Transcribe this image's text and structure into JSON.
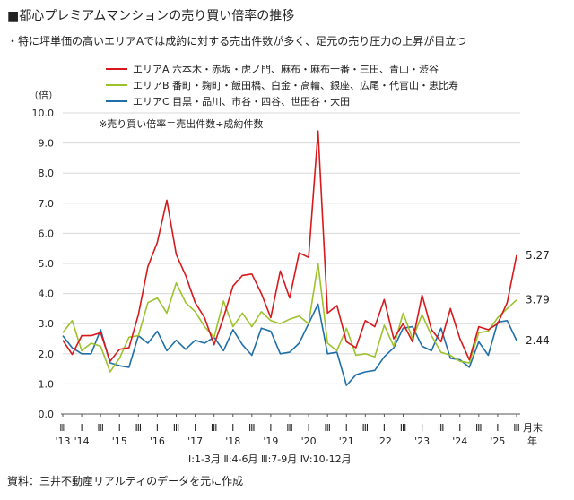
{
  "header": {
    "title": "■都心プレミアムマンションの売り買い倍率の推移",
    "subtitle": "・特に坪単価の高いエリアAでは成約に対する売出件数が多く、足元の売り圧力の上昇が目立つ"
  },
  "footer": {
    "quarter_key": "Ⅰ:1-3月 Ⅱ:4-6月 Ⅲ:7-9月 Ⅳ:10-12月",
    "source": "資料：三井不動産リアルティのデータを元に作成"
  },
  "chart_data": {
    "type": "line",
    "ylabel": "（倍）",
    "ylim": [
      0,
      10
    ],
    "yticks": [
      "0.0",
      "1.0",
      "2.0",
      "3.0",
      "4.0",
      "5.0",
      "6.0",
      "7.0",
      "8.0",
      "9.0",
      "10.0"
    ],
    "grid": true,
    "legend_position": "top-left",
    "note": "※売り買い倍率＝売出件数÷成約件数",
    "x_unit_label": [
      "月末",
      "年"
    ],
    "x_tick_labels": [
      {
        "q": "Ⅲ",
        "year": "'13"
      },
      {
        "q": "Ⅰ",
        "year": "'14"
      },
      {
        "q": "Ⅲ",
        "year": ""
      },
      {
        "q": "Ⅰ",
        "year": "'15"
      },
      {
        "q": "Ⅲ",
        "year": ""
      },
      {
        "q": "Ⅰ",
        "year": "'16"
      },
      {
        "q": "Ⅲ",
        "year": ""
      },
      {
        "q": "Ⅰ",
        "year": "'17"
      },
      {
        "q": "Ⅲ",
        "year": ""
      },
      {
        "q": "Ⅰ",
        "year": "'18"
      },
      {
        "q": "Ⅲ",
        "year": ""
      },
      {
        "q": "Ⅰ",
        "year": "'19"
      },
      {
        "q": "Ⅲ",
        "year": ""
      },
      {
        "q": "Ⅰ",
        "year": "'20"
      },
      {
        "q": "Ⅲ",
        "year": ""
      },
      {
        "q": "Ⅰ",
        "year": "'21"
      },
      {
        "q": "Ⅲ",
        "year": ""
      },
      {
        "q": "Ⅰ",
        "year": "'22"
      },
      {
        "q": "Ⅲ",
        "year": ""
      },
      {
        "q": "Ⅰ",
        "year": "'23"
      },
      {
        "q": "Ⅲ",
        "year": ""
      },
      {
        "q": "Ⅰ",
        "year": "'24"
      },
      {
        "q": "Ⅲ",
        "year": ""
      },
      {
        "q": "Ⅰ",
        "year": "'25"
      },
      {
        "q": "Ⅲ",
        "year": ""
      }
    ],
    "series": [
      {
        "name": "エリアA 六本木・赤坂・虎ノ門、麻布・麻布十番・三田、青山・渋谷",
        "color": "#d7191c",
        "end_label": "5.27",
        "values": [
          2.45,
          1.98,
          2.6,
          2.6,
          2.7,
          1.75,
          2.15,
          2.2,
          3.3,
          4.9,
          5.7,
          7.1,
          5.3,
          4.6,
          3.7,
          3.2,
          2.3,
          3.2,
          4.25,
          4.6,
          4.65,
          4.0,
          3.2,
          4.75,
          3.85,
          5.35,
          5.2,
          9.4,
          3.35,
          3.6,
          2.4,
          2.2,
          3.1,
          2.9,
          3.8,
          2.5,
          3.0,
          2.4,
          3.95,
          2.8,
          2.4,
          3.5,
          2.5,
          1.8,
          2.9,
          2.8,
          3.0,
          3.7,
          5.27
        ]
      },
      {
        "name": "エリアB 番町・麹町・飯田橋、白金・高輪、銀座、広尾・代官山・恵比寿",
        "color": "#9cc22c",
        "end_label": "3.79",
        "values": [
          2.7,
          3.1,
          2.1,
          2.35,
          2.25,
          1.4,
          1.85,
          2.55,
          2.6,
          3.7,
          3.85,
          3.35,
          4.35,
          3.7,
          3.4,
          2.9,
          2.55,
          3.75,
          2.9,
          3.35,
          2.9,
          3.4,
          3.1,
          3.0,
          3.15,
          3.25,
          3.0,
          5.0,
          2.35,
          2.1,
          2.85,
          1.95,
          2.0,
          1.9,
          2.95,
          2.25,
          3.35,
          2.5,
          3.3,
          2.6,
          2.05,
          1.95,
          1.75,
          1.7,
          2.7,
          2.75,
          3.2,
          3.5,
          3.79
        ]
      },
      {
        "name": "エリアC 目黒・品川、市谷・四谷、世田谷・大田",
        "color": "#1f6fa8",
        "end_label": "2.44",
        "values": [
          2.6,
          2.2,
          2.0,
          2.0,
          2.8,
          1.7,
          1.6,
          1.55,
          2.6,
          2.35,
          2.75,
          2.1,
          2.45,
          2.15,
          2.45,
          2.35,
          2.55,
          2.1,
          2.8,
          2.3,
          1.95,
          2.85,
          2.75,
          2.0,
          2.05,
          2.35,
          3.0,
          3.65,
          2.0,
          2.05,
          0.95,
          1.3,
          1.4,
          1.45,
          1.9,
          2.2,
          2.85,
          2.9,
          2.25,
          2.1,
          2.85,
          1.85,
          1.8,
          1.55,
          2.4,
          1.95,
          3.05,
          3.1,
          2.44
        ]
      }
    ]
  }
}
